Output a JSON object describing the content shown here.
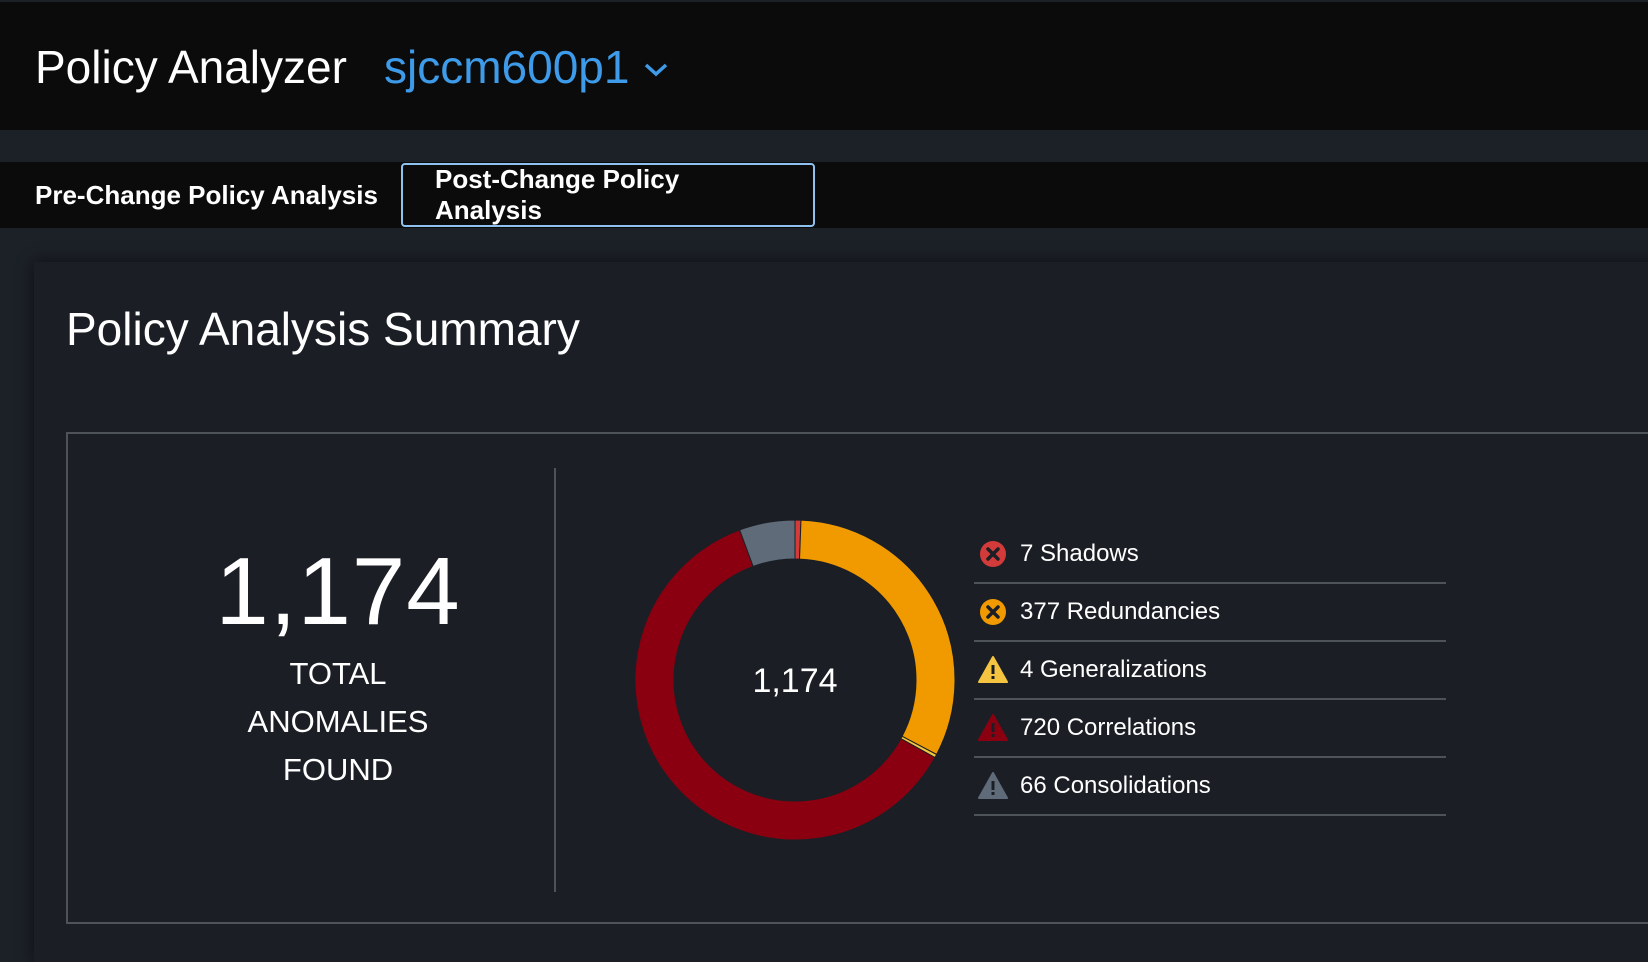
{
  "header": {
    "title": "Policy Analyzer",
    "device": "sjccm600p1"
  },
  "tabs": [
    {
      "label": "Pre-Change Policy Analysis",
      "active": false
    },
    {
      "label": "Post-Change Policy Analysis",
      "active": true
    }
  ],
  "summary": {
    "title": "Policy Analysis Summary",
    "total": "1,174",
    "total_label": [
      "TOTAL",
      "ANOMALIES",
      "FOUND"
    ]
  },
  "chart_data": {
    "type": "pie",
    "center_label": "1,174",
    "categories": [
      "Shadows",
      "Redundancies",
      "Generalizations",
      "Correlations",
      "Consolidations"
    ],
    "values": [
      7,
      377,
      4,
      720,
      66
    ],
    "colors": [
      "#d33b3b",
      "#f09a00",
      "#f5c542",
      "#8b0010",
      "#5f6b78"
    ]
  },
  "legend": [
    {
      "label": "7 Shadows",
      "icon": "error-circle-icon",
      "color": "#d33b3b"
    },
    {
      "label": "377 Redundancies",
      "icon": "error-circle-icon",
      "color": "#f09a00"
    },
    {
      "label": "4 Generalizations",
      "icon": "warning-triangle-icon",
      "color": "#f5c542"
    },
    {
      "label": "720 Correlations",
      "icon": "warning-triangle-icon",
      "color": "#8b0010"
    },
    {
      "label": "66 Consolidations",
      "icon": "warning-triangle-icon",
      "color": "#5f6b78"
    }
  ]
}
